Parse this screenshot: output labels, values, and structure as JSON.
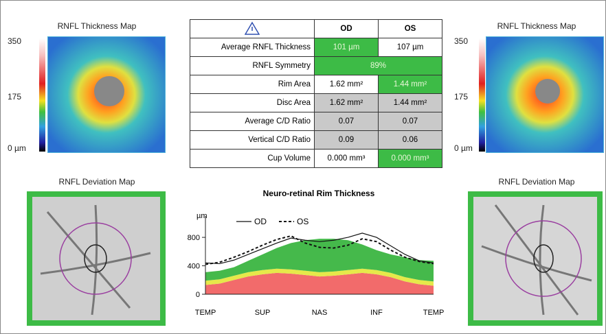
{
  "left_panel": {
    "thickness_title": "RNFL Thickness Map",
    "scale_labels": [
      "350",
      "175",
      "0 µm"
    ],
    "deviation_title": "RNFL Deviation Map"
  },
  "right_panel": {
    "thickness_title": "RNFL Thickness Map",
    "scale_labels": [
      "350",
      "175",
      "0 µm"
    ],
    "deviation_title": "RNFL Deviation Map"
  },
  "table": {
    "header": [
      "OD",
      "OS"
    ],
    "rows": [
      [
        "Average RNFL Thickness",
        "101 µm",
        "107 µm"
      ],
      [
        "RNFL Symmetry",
        "89%"
      ],
      [
        "Rim Area",
        "1.62 mm²",
        "1.44 mm²"
      ],
      [
        "Disc Area",
        "1.62 mm²",
        "1.44 mm²"
      ],
      [
        "Average C/D Ratio",
        "0.07",
        "0.07"
      ],
      [
        "Vertical C/D Ratio",
        "0.09",
        "0.06"
      ],
      [
        "Cup Volume",
        "0.000 mm³",
        "0.000 mm³"
      ]
    ]
  },
  "chart_data": {
    "type": "line",
    "title": "Neuro-retinal Rim Thickness",
    "y_label": "µm",
    "categories": [
      "TEMP",
      null,
      null,
      null,
      "SUP",
      null,
      null,
      null,
      "NAS",
      null,
      null,
      null,
      "INF",
      null,
      null,
      null,
      "TEMP"
    ],
    "ylim": [
      0,
      1100
    ],
    "yticks": [
      0,
      400,
      800
    ],
    "series": [
      {
        "color": "#f26b6b",
        "fill": true,
        "values": [
          130,
          150,
          200,
          250,
          280,
          300,
          290,
          270,
          250,
          260,
          280,
          300,
          280,
          240,
          180,
          140,
          120
        ]
      },
      {
        "color": "#e6e84a",
        "fill": true,
        "values": [
          60,
          60,
          60,
          60,
          60,
          60,
          60,
          60,
          60,
          60,
          60,
          60,
          60,
          60,
          60,
          60,
          60
        ]
      },
      {
        "color": "#45b94b",
        "fill": true,
        "values": [
          120,
          120,
          120,
          160,
          220,
          290,
          370,
          430,
          470,
          460,
          420,
          340,
          280,
          260,
          280,
          280,
          290
        ]
      },
      {
        "name": "OD",
        "color": "#111111",
        "dash": false,
        "values": [
          440,
          430,
          480,
          560,
          640,
          720,
          790,
          760,
          740,
          760,
          800,
          860,
          800,
          680,
          560,
          470,
          440
        ]
      },
      {
        "name": "OS",
        "color": "#111111",
        "dash": true,
        "values": [
          420,
          450,
          520,
          600,
          690,
          770,
          820,
          720,
          660,
          650,
          690,
          780,
          740,
          620,
          520,
          460,
          430
        ]
      }
    ]
  }
}
